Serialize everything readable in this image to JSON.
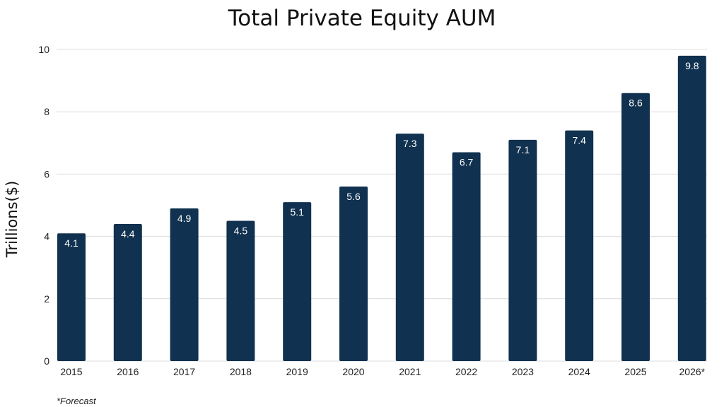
{
  "chart_data": {
    "type": "bar",
    "title": "Total Private Equity AUM",
    "xlabel": "",
    "ylabel": "Trillions($)",
    "categories": [
      "2015",
      "2016",
      "2017",
      "2018",
      "2019",
      "2020",
      "2021",
      "2022",
      "2023",
      "2024",
      "2025",
      "2026*"
    ],
    "values": [
      4.1,
      4.4,
      4.9,
      4.5,
      5.1,
      5.6,
      7.3,
      6.7,
      7.1,
      7.4,
      8.6,
      9.8
    ],
    "data_labels": [
      "4.1",
      "4.4",
      "4.9",
      "4.5",
      "5.1",
      "5.6",
      "7.3",
      "6.7",
      "7.1",
      "7.4",
      "8.6",
      "9.8"
    ],
    "ylim": [
      0,
      10
    ],
    "yticks": [
      "0",
      "2",
      "4",
      "6",
      "8",
      "10"
    ],
    "grid": true,
    "bar_color": "#10314f",
    "footnote": "*Forecast"
  }
}
